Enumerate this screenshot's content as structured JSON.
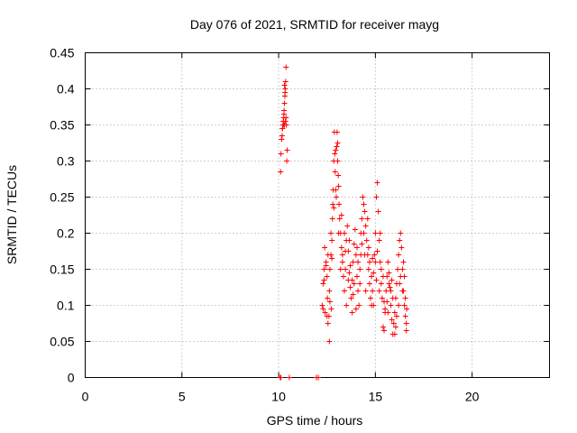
{
  "chart_data": {
    "type": "scatter",
    "title": "Day 076 of 2021, SRMTID for receiver mayg",
    "xlabel": "GPS time / hours",
    "ylabel": "SRMTID / TECUs",
    "xlim": [
      0,
      24
    ],
    "ylim": [
      0,
      0.45
    ],
    "xticks": [
      0,
      5,
      10,
      15,
      20
    ],
    "xtick_labels": [
      "0",
      "5",
      "10",
      "15",
      "20"
    ],
    "yticks": [
      0,
      0.05,
      0.1,
      0.15,
      0.2,
      0.25,
      0.3,
      0.35,
      0.4,
      0.45
    ],
    "ytick_labels": [
      "0",
      "0.05",
      "0.1",
      "0.15",
      "0.2",
      "0.25",
      "0.3",
      "0.35",
      "0.4",
      "0.45"
    ],
    "grid": true,
    "marker": "+",
    "marker_color": "#ff0000",
    "series": [
      {
        "name": "SRMTID",
        "points": [
          [
            10.08,
            0.0
          ],
          [
            10.12,
            0.0
          ],
          [
            10.55,
            0.0
          ],
          [
            11.95,
            0.0
          ],
          [
            12.05,
            0.0
          ],
          [
            10.1,
            0.285
          ],
          [
            10.12,
            0.31
          ],
          [
            10.15,
            0.33
          ],
          [
            10.18,
            0.335
          ],
          [
            10.2,
            0.345
          ],
          [
            10.22,
            0.35
          ],
          [
            10.24,
            0.355
          ],
          [
            10.26,
            0.36
          ],
          [
            10.28,
            0.37
          ],
          [
            10.3,
            0.38
          ],
          [
            10.32,
            0.39
          ],
          [
            10.34,
            0.4
          ],
          [
            10.36,
            0.41
          ],
          [
            10.38,
            0.43
          ],
          [
            10.2,
            0.345
          ],
          [
            10.25,
            0.35
          ],
          [
            10.3,
            0.35
          ],
          [
            10.35,
            0.355
          ],
          [
            10.4,
            0.35
          ],
          [
            10.42,
            0.3
          ],
          [
            10.44,
            0.315
          ],
          [
            10.3,
            0.405
          ],
          [
            10.33,
            0.395
          ],
          [
            10.27,
            0.365
          ],
          [
            10.38,
            0.36
          ],
          [
            12.25,
            0.1
          ],
          [
            12.3,
            0.13
          ],
          [
            12.35,
            0.15
          ],
          [
            12.38,
            0.18
          ],
          [
            12.4,
            0.09
          ],
          [
            12.45,
            0.16
          ],
          [
            12.5,
            0.14
          ],
          [
            12.52,
            0.11
          ],
          [
            12.55,
            0.075
          ],
          [
            12.6,
            0.085
          ],
          [
            12.62,
            0.12
          ],
          [
            12.65,
            0.15
          ],
          [
            12.7,
            0.17
          ],
          [
            12.72,
            0.095
          ],
          [
            12.75,
            0.19
          ],
          [
            12.78,
            0.22
          ],
          [
            12.8,
            0.24
          ],
          [
            12.82,
            0.26
          ],
          [
            12.85,
            0.3
          ],
          [
            12.88,
            0.34
          ],
          [
            12.9,
            0.31
          ],
          [
            12.92,
            0.285
          ],
          [
            12.95,
            0.26
          ],
          [
            12.98,
            0.25
          ],
          [
            13.0,
            0.32
          ],
          [
            13.02,
            0.34
          ],
          [
            13.05,
            0.3
          ],
          [
            13.08,
            0.28
          ],
          [
            13.1,
            0.265
          ],
          [
            13.12,
            0.24
          ],
          [
            12.62,
            0.05
          ],
          [
            12.3,
            0.095
          ],
          [
            12.45,
            0.155
          ],
          [
            12.55,
            0.17
          ],
          [
            12.7,
            0.2
          ],
          [
            12.75,
            0.165
          ],
          [
            12.85,
            0.235
          ],
          [
            12.95,
            0.315
          ],
          [
            13.05,
            0.325
          ],
          [
            12.65,
            0.105
          ],
          [
            12.5,
            0.085
          ],
          [
            12.35,
            0.135
          ],
          [
            13.15,
            0.22
          ],
          [
            13.2,
            0.2
          ],
          [
            13.25,
            0.18
          ],
          [
            13.3,
            0.16
          ],
          [
            13.35,
            0.14
          ],
          [
            13.4,
            0.12
          ],
          [
            13.45,
            0.15
          ],
          [
            13.5,
            0.19
          ],
          [
            13.55,
            0.21
          ],
          [
            13.6,
            0.175
          ],
          [
            13.65,
            0.145
          ],
          [
            13.7,
            0.125
          ],
          [
            13.75,
            0.11
          ],
          [
            13.8,
            0.135
          ],
          [
            13.85,
            0.16
          ],
          [
            13.9,
            0.185
          ],
          [
            13.95,
            0.205
          ],
          [
            14.0,
            0.17
          ],
          [
            14.05,
            0.14
          ],
          [
            14.1,
            0.12
          ],
          [
            14.15,
            0.1
          ],
          [
            14.2,
            0.13
          ],
          [
            14.25,
            0.17
          ],
          [
            14.3,
            0.22
          ],
          [
            14.35,
            0.25
          ],
          [
            14.4,
            0.24
          ],
          [
            14.45,
            0.23
          ],
          [
            14.5,
            0.21
          ],
          [
            14.55,
            0.19
          ],
          [
            14.6,
            0.17
          ],
          [
            14.65,
            0.15
          ],
          [
            14.7,
            0.13
          ],
          [
            14.75,
            0.11
          ],
          [
            14.8,
            0.1
          ],
          [
            14.85,
            0.12
          ],
          [
            14.9,
            0.145
          ],
          [
            14.95,
            0.17
          ],
          [
            15.0,
            0.2
          ],
          [
            15.05,
            0.25
          ],
          [
            15.1,
            0.27
          ],
          [
            15.15,
            0.23
          ],
          [
            15.2,
            0.19
          ],
          [
            15.25,
            0.16
          ],
          [
            15.3,
            0.13
          ],
          [
            15.35,
            0.11
          ],
          [
            15.4,
            0.07
          ],
          [
            15.45,
            0.065
          ],
          [
            15.5,
            0.09
          ],
          [
            15.55,
            0.12
          ],
          [
            15.6,
            0.14
          ],
          [
            15.65,
            0.16
          ],
          [
            15.7,
            0.145
          ],
          [
            15.75,
            0.125
          ],
          [
            15.8,
            0.1
          ],
          [
            15.85,
            0.08
          ],
          [
            15.9,
            0.06
          ],
          [
            15.95,
            0.075
          ],
          [
            16.0,
            0.09
          ],
          [
            16.05,
            0.11
          ],
          [
            16.1,
            0.13
          ],
          [
            16.15,
            0.15
          ],
          [
            16.2,
            0.17
          ],
          [
            16.25,
            0.19
          ],
          [
            16.3,
            0.2
          ],
          [
            16.35,
            0.18
          ],
          [
            16.4,
            0.15
          ],
          [
            16.45,
            0.12
          ],
          [
            16.5,
            0.1
          ],
          [
            16.55,
            0.085
          ],
          [
            16.6,
            0.065
          ],
          [
            16.62,
            0.095
          ],
          [
            13.2,
            0.15
          ],
          [
            13.4,
            0.2
          ],
          [
            13.6,
            0.135
          ],
          [
            13.8,
            0.09
          ],
          [
            14.0,
            0.095
          ],
          [
            14.2,
            0.15
          ],
          [
            14.4,
            0.2
          ],
          [
            14.6,
            0.22
          ],
          [
            14.8,
            0.14
          ],
          [
            15.0,
            0.16
          ],
          [
            15.2,
            0.12
          ],
          [
            15.4,
            0.14
          ],
          [
            15.6,
            0.105
          ],
          [
            15.8,
            0.12
          ],
          [
            16.0,
            0.06
          ],
          [
            16.2,
            0.1
          ],
          [
            16.4,
            0.12
          ],
          [
            16.5,
            0.14
          ],
          [
            13.3,
            0.17
          ],
          [
            13.5,
            0.1
          ],
          [
            13.7,
            0.155
          ],
          [
            13.9,
            0.13
          ],
          [
            14.1,
            0.16
          ],
          [
            14.3,
            0.185
          ],
          [
            14.5,
            0.12
          ],
          [
            14.7,
            0.16
          ],
          [
            14.9,
            0.1
          ],
          [
            15.1,
            0.175
          ],
          [
            15.3,
            0.15
          ],
          [
            15.5,
            0.095
          ],
          [
            15.7,
            0.13
          ],
          [
            15.9,
            0.11
          ],
          [
            16.1,
            0.085
          ],
          [
            16.3,
            0.14
          ],
          [
            16.6,
            0.075
          ],
          [
            13.1,
            0.2
          ],
          [
            13.25,
            0.225
          ],
          [
            13.45,
            0.175
          ],
          [
            13.65,
            0.19
          ],
          [
            13.85,
            0.115
          ],
          [
            14.05,
            0.18
          ],
          [
            14.25,
            0.2
          ],
          [
            14.45,
            0.17
          ],
          [
            14.65,
            0.18
          ],
          [
            14.85,
            0.165
          ],
          [
            15.05,
            0.135
          ],
          [
            15.25,
            0.2
          ],
          [
            15.45,
            0.105
          ],
          [
            15.65,
            0.09
          ],
          [
            15.85,
            0.135
          ],
          [
            16.05,
            0.07
          ],
          [
            16.25,
            0.13
          ],
          [
            16.45,
            0.16
          ],
          [
            16.55,
            0.11
          ]
        ]
      }
    ]
  }
}
